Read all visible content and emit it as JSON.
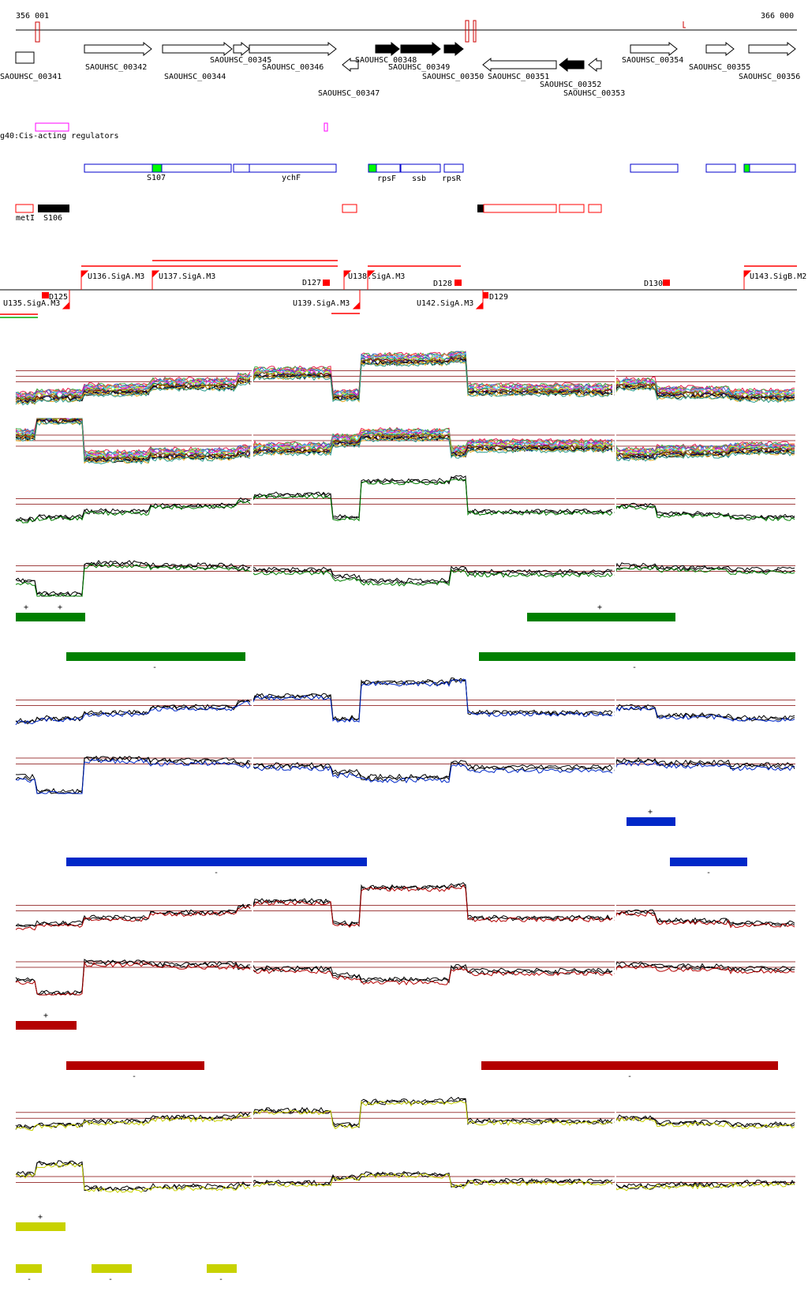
{
  "ruler": {
    "start_label": "356 001",
    "end_label": "366 000"
  },
  "genes": [
    {
      "label": "SAOUHSC_00341",
      "strand": "box",
      "filled": false
    },
    {
      "label": "SAOUHSC_00342",
      "strand": "+",
      "filled": false
    },
    {
      "label": "SAOUHSC_00344",
      "strand": "+",
      "filled": false
    },
    {
      "label": "SAOUHSC_00345",
      "strand": "+",
      "filled": false
    },
    {
      "label": "SAOUHSC_00346",
      "strand": "+",
      "filled": false
    },
    {
      "label": "SAOUHSC_00347",
      "strand": "-",
      "filled": false
    },
    {
      "label": "SAOUHSC_00348",
      "strand": "+",
      "filled": true
    },
    {
      "label": "SAOUHSC_00349",
      "strand": "+",
      "filled": true
    },
    {
      "label": "SAOUHSC_00350",
      "strand": "+",
      "filled": true
    },
    {
      "label": "SAOUHSC_00351",
      "strand": "-",
      "filled": false
    },
    {
      "label": "SAOUHSC_00352",
      "strand": "-",
      "filled": true
    },
    {
      "label": "SAOUHSC_00353",
      "strand": "-",
      "filled": false
    },
    {
      "label": "SAOUHSC_00354",
      "strand": "+",
      "filled": false
    },
    {
      "label": "SAOUHSC_00355",
      "strand": "+",
      "filled": false
    },
    {
      "label": "SAOUHSC_00356",
      "strand": "+",
      "filled": false
    }
  ],
  "regulators_label": "g40:Cis-acting regulators",
  "operon_labels": [
    "S107",
    "ychF",
    "rpsF",
    "ssb",
    "rpsR"
  ],
  "small_features": [
    "metI",
    "S106"
  ],
  "promoters": [
    "U136.SigA.M3",
    "U137.SigA.M3",
    "D127",
    "U138.SigA.M3",
    "D128",
    "D130",
    "U143.SigB.M2",
    "D125",
    "U135.SigA.M3",
    "U139.SigA.M3",
    "U142.SigA.M3",
    "D129"
  ],
  "sign_plus": "+",
  "sign_minus": "-",
  "colors": {
    "gene_outline": "#000000",
    "operon": "#0000cc",
    "operon_highlight": "#00ff00",
    "red_feature": "#ff0000",
    "regulator": "#ff00ff",
    "green_track": "#008000",
    "blue_track": "#0028c8",
    "red_track": "#b40000",
    "yellow_track": "#c8d200",
    "threshold": "#a04040"
  }
}
